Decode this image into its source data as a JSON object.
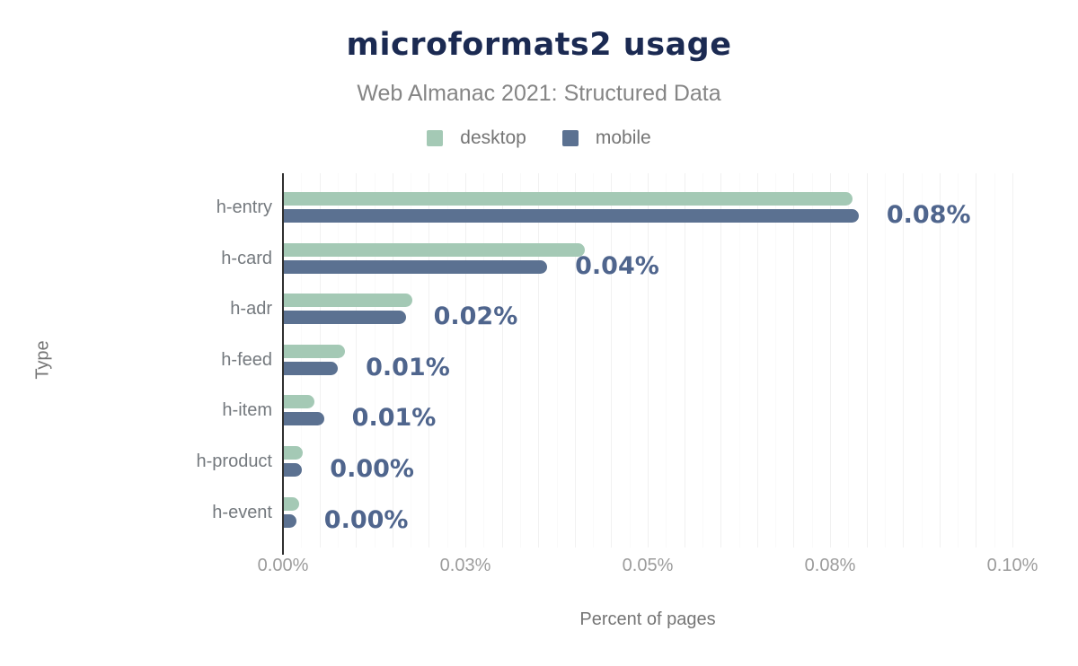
{
  "title": "microformats2 usage",
  "subtitle": "Web Almanac 2021: Structured Data",
  "legend": [
    {
      "label": "desktop",
      "color": "#a4c9b5"
    },
    {
      "label": "mobile",
      "color": "#5b7191"
    }
  ],
  "chart_data": {
    "type": "bar",
    "orientation": "horizontal",
    "title": "microformats2 usage",
    "subtitle": "Web Almanac 2021: Structured Data",
    "xlabel": "Percent of pages",
    "ylabel": "Type",
    "xlim": [
      0,
      0.1
    ],
    "grid": "vertical",
    "legend_position": "top",
    "categories": [
      "h-entry",
      "h-card",
      "h-adr",
      "h-feed",
      "h-item",
      "h-product",
      "h-event"
    ],
    "series": [
      {
        "name": "desktop",
        "color": "#a4c9b5",
        "values": [
          0.078,
          0.0413,
          0.0176,
          0.0084,
          0.0042,
          0.0026,
          0.0021
        ]
      },
      {
        "name": "mobile",
        "color": "#5b7191",
        "values": [
          0.0788,
          0.0361,
          0.0167,
          0.0074,
          0.0055,
          0.0025,
          0.0017
        ]
      }
    ],
    "annotations": [
      "0.08%",
      "0.04%",
      "0.02%",
      "0.01%",
      "0.01%",
      "0.00%",
      "0.00%"
    ],
    "x_ticks": [
      "0.00%",
      "0.03%",
      "0.05%",
      "0.08%",
      "0.10%"
    ],
    "x_tick_values": [
      0,
      0.025,
      0.05,
      0.075,
      0.1
    ]
  }
}
